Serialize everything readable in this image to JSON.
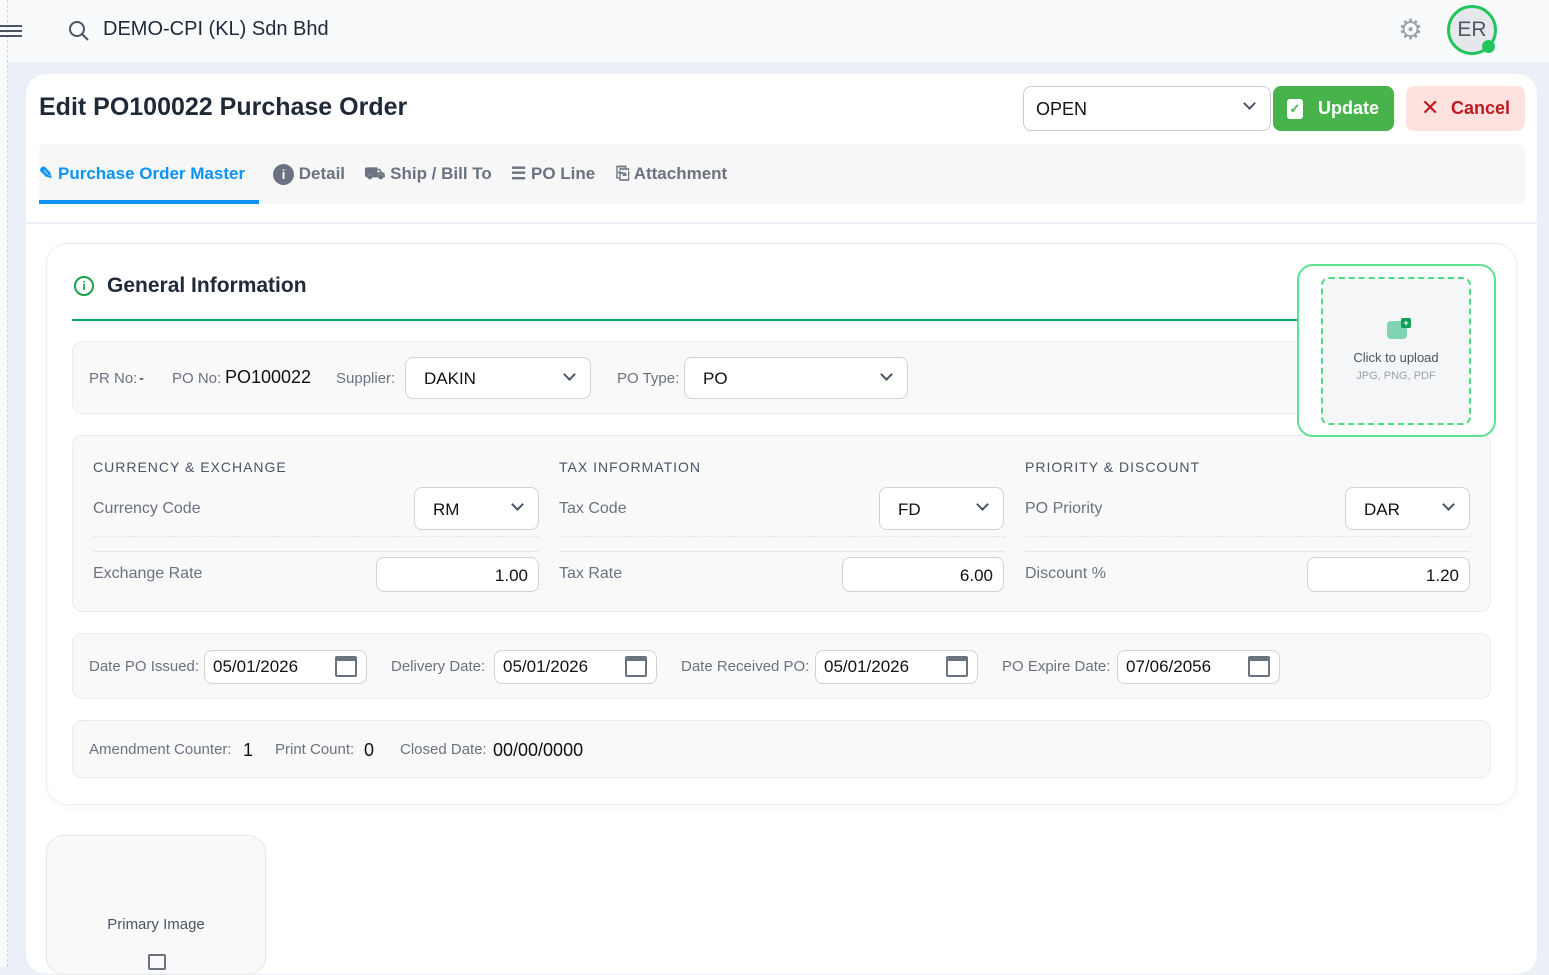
{
  "topbar": {
    "company": "DEMO-CPI (KL) Sdn Bhd",
    "avatar_initials": "ER"
  },
  "header": {
    "title": "Edit PO100022 Purchase Order",
    "status": "OPEN",
    "update_label": "Update",
    "cancel_label": "Cancel"
  },
  "tabs": [
    {
      "label": "Purchase Order Master",
      "active": true
    },
    {
      "label": "Detail"
    },
    {
      "label": "Ship / Bill To"
    },
    {
      "label": "PO Line"
    },
    {
      "label": "Attachment"
    }
  ],
  "general": {
    "title": "General Information",
    "upload": {
      "label": "Click to upload",
      "types": "JPG, PNG, PDF"
    },
    "pr_no_label": "PR No:",
    "pr_no": "-",
    "po_no_label": "PO No:",
    "po_no": "PO100022",
    "supplier_label": "Supplier:",
    "supplier": "DAKIN",
    "po_type_label": "PO Type:",
    "po_type": "PO"
  },
  "groups": {
    "currency": {
      "title": "CURRENCY & EXCHANGE",
      "code_label": "Currency Code",
      "code": "RM",
      "rate_label": "Exchange Rate",
      "rate": "1.00"
    },
    "tax": {
      "title": "TAX INFORMATION",
      "code_label": "Tax Code",
      "code": "FD",
      "rate_label": "Tax Rate",
      "rate": "6.00"
    },
    "priority": {
      "title": "PRIORITY & DISCOUNT",
      "priority_label": "PO Priority",
      "priority": "DAR",
      "discount_label": "Discount %",
      "discount": "1.20"
    }
  },
  "dates": [
    {
      "label": "Date PO Issued:",
      "value": "05/01/2026"
    },
    {
      "label": "Delivery Date:",
      "value": "05/01/2026"
    },
    {
      "label": "Date Received PO:",
      "value": "05/01/2026"
    },
    {
      "label": "PO Expire Date:",
      "value": "07/06/2056"
    }
  ],
  "counters": {
    "amend_label": "Amendment Counter:",
    "amend": "1",
    "print_label": "Print Count:",
    "print": "0",
    "closed_label": "Closed Date:",
    "closed": "00/00/0000"
  },
  "primary_image": {
    "label": "Primary Image"
  }
}
